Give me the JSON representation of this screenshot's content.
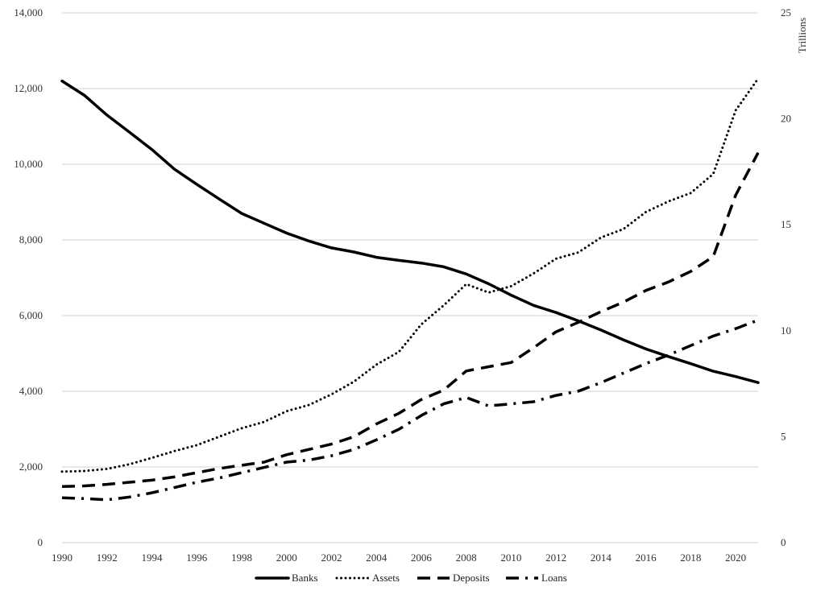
{
  "chart_data": {
    "type": "line",
    "title": "",
    "x": [
      1990,
      1991,
      1992,
      1993,
      1994,
      1995,
      1996,
      1997,
      1998,
      1999,
      2000,
      2001,
      2002,
      2003,
      2004,
      2005,
      2006,
      2007,
      2008,
      2009,
      2010,
      2011,
      2012,
      2013,
      2014,
      2015,
      2016,
      2017,
      2018,
      2019,
      2020,
      2021
    ],
    "xticks": [
      "1990",
      "1992",
      "1994",
      "1996",
      "1998",
      "2000",
      "2002",
      "2004",
      "2006",
      "2008",
      "2010",
      "2012",
      "2014",
      "2016",
      "2018",
      "2020"
    ],
    "xlim": [
      1990,
      2021
    ],
    "ylim_left": [
      0,
      14000
    ],
    "yticks_left": [
      "0",
      "2,000",
      "4,000",
      "6,000",
      "8,000",
      "10,000",
      "12,000",
      "14,000"
    ],
    "ylim_right": [
      0,
      25
    ],
    "yticks_right": [
      "0",
      "5",
      "10",
      "15",
      "20",
      "25"
    ],
    "ylabel_right": "Trillions",
    "grid": true,
    "legend_position": "bottom-center",
    "series": [
      {
        "name": "Banks",
        "axis": "left",
        "style": "solid",
        "values": [
          12200,
          11820,
          11300,
          10850,
          10390,
          9870,
          9470,
          9080,
          8700,
          8440,
          8180,
          7970,
          7790,
          7680,
          7540,
          7460,
          7390,
          7290,
          7100,
          6840,
          6540,
          6270,
          6080,
          5860,
          5620,
          5360,
          5120,
          4920,
          4730,
          4530,
          4390,
          4230
        ]
      },
      {
        "name": "Assets",
        "axis": "right",
        "style": "dotted",
        "values": [
          3.35,
          3.38,
          3.48,
          3.7,
          4.0,
          4.32,
          4.6,
          5.0,
          5.4,
          5.7,
          6.2,
          6.5,
          7.0,
          7.6,
          8.4,
          9.0,
          10.3,
          11.2,
          12.2,
          11.8,
          12.1,
          12.7,
          13.4,
          13.7,
          14.4,
          14.8,
          15.6,
          16.1,
          16.5,
          17.4,
          20.4,
          21.9
        ]
      },
      {
        "name": "Deposits",
        "axis": "right",
        "style": "dashed",
        "values": [
          2.65,
          2.68,
          2.75,
          2.85,
          2.95,
          3.1,
          3.3,
          3.5,
          3.65,
          3.8,
          4.15,
          4.4,
          4.65,
          5.0,
          5.6,
          6.1,
          6.75,
          7.2,
          8.1,
          8.3,
          8.5,
          9.2,
          9.95,
          10.4,
          10.9,
          11.35,
          11.9,
          12.3,
          12.8,
          13.5,
          16.4,
          18.4
        ]
      },
      {
        "name": "Loans",
        "axis": "right",
        "style": "dashdot",
        "values": [
          2.12,
          2.08,
          2.02,
          2.15,
          2.35,
          2.6,
          2.85,
          3.05,
          3.3,
          3.55,
          3.8,
          3.9,
          4.1,
          4.4,
          4.85,
          5.35,
          6.0,
          6.55,
          6.85,
          6.45,
          6.55,
          6.65,
          6.95,
          7.15,
          7.55,
          8.0,
          8.45,
          8.85,
          9.3,
          9.75,
          10.1,
          10.5
        ]
      }
    ]
  }
}
